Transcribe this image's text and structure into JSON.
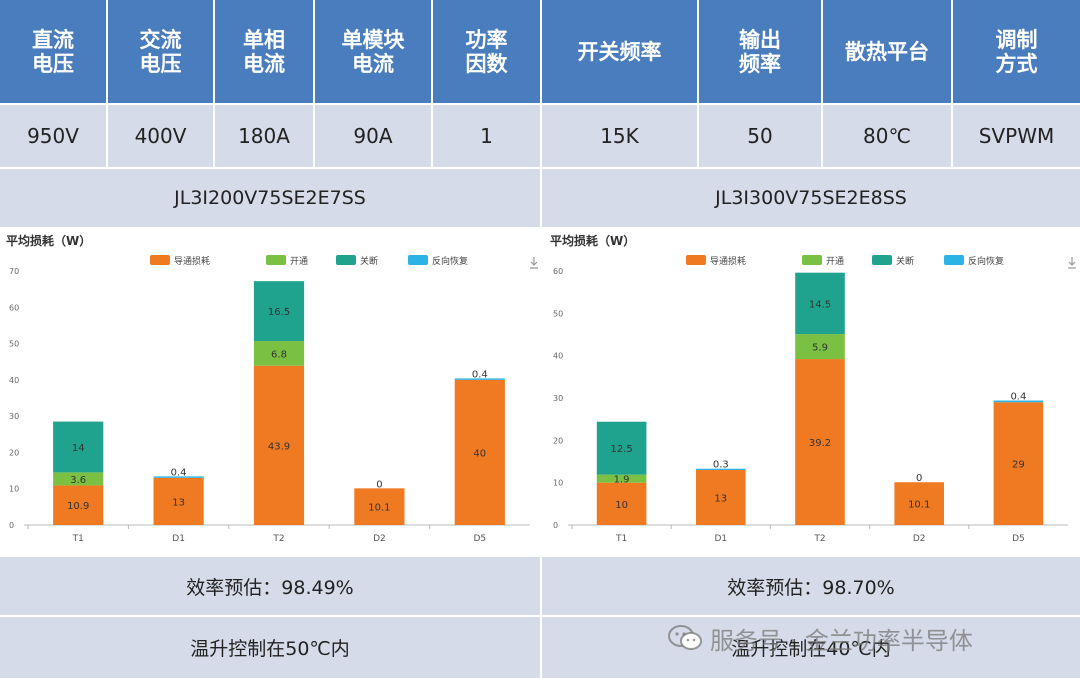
{
  "header": {
    "columns": [
      "直流\n电压",
      "交流\n电压",
      "单相\n电流",
      "单模块\n电流",
      "功率\n因数",
      "开关频率",
      "输出\n频率",
      "散热平台",
      "调制\n方式"
    ]
  },
  "values": [
    "950V",
    "400V",
    "180A",
    "90A",
    "1",
    "15K",
    "50",
    "80℃",
    "SVPWM"
  ],
  "models": [
    "JL3I200V75SE2E7SS",
    "JL3I300V75SE2E8SS"
  ],
  "efficiency": [
    "效率预估：98.49%",
    "效率预估：98.70%"
  ],
  "temperature": [
    "温升控制在50℃内",
    "温升控制在40℃内"
  ],
  "watermark": "服务号 · 金兰功率半导体",
  "chart_data": [
    {
      "type": "bar",
      "stacked": true,
      "title": "平均损耗（W）",
      "categories": [
        "T1",
        "D1",
        "T2",
        "D2",
        "D5"
      ],
      "ylim": [
        0,
        70
      ],
      "yticks": [
        0,
        10,
        20,
        30,
        40,
        50,
        60,
        70
      ],
      "legend_position": "top",
      "series": [
        {
          "name": "导通损耗",
          "color": "#f07a22",
          "values": [
            10.9,
            13,
            43.9,
            10.1,
            40
          ]
        },
        {
          "name": "开通",
          "color": "#7ac143",
          "values": [
            3.6,
            0,
            6.8,
            0,
            0
          ]
        },
        {
          "name": "关断",
          "color": "#1fa38e",
          "values": [
            14,
            0,
            16.5,
            0,
            0
          ]
        },
        {
          "name": "反向恢复",
          "color": "#2bb3e6",
          "values": [
            0,
            0.4,
            0,
            0,
            0.4
          ]
        }
      ],
      "data_labels": [
        {
          "category": "T1",
          "series": "导通损耗",
          "text": "10.9"
        },
        {
          "category": "T1",
          "series": "开通",
          "text": "3.6"
        },
        {
          "category": "T1",
          "series": "关断",
          "text": "14"
        },
        {
          "category": "D1",
          "series": "导通损耗",
          "text": "13"
        },
        {
          "category": "D1",
          "series": "反向恢复",
          "text": "0.4"
        },
        {
          "category": "T2",
          "series": "导通损耗",
          "text": "43.9"
        },
        {
          "category": "T2",
          "series": "开通",
          "text": "6.8"
        },
        {
          "category": "T2",
          "series": "关断",
          "text": "16.5"
        },
        {
          "category": "D2",
          "series": "导通损耗",
          "text": "10.1"
        },
        {
          "category": "D2",
          "series": "反向恢复",
          "text": "0"
        },
        {
          "category": "D5",
          "series": "导通损耗",
          "text": "40"
        },
        {
          "category": "D5",
          "series": "反向恢复",
          "text": "0.4"
        }
      ]
    },
    {
      "type": "bar",
      "stacked": true,
      "title": "平均损耗（W）",
      "categories": [
        "T1",
        "D1",
        "T2",
        "D2",
        "D5"
      ],
      "ylim": [
        0,
        60
      ],
      "yticks": [
        0,
        10,
        20,
        30,
        40,
        50,
        60
      ],
      "legend_position": "top",
      "series": [
        {
          "name": "导通损耗",
          "color": "#f07a22",
          "values": [
            10,
            13,
            39.2,
            10.1,
            29
          ]
        },
        {
          "name": "开通",
          "color": "#7ac143",
          "values": [
            1.9,
            0,
            5.9,
            0,
            0
          ]
        },
        {
          "name": "关断",
          "color": "#1fa38e",
          "values": [
            12.5,
            0,
            14.5,
            0,
            0
          ]
        },
        {
          "name": "反向恢复",
          "color": "#2bb3e6",
          "values": [
            0,
            0.3,
            0,
            0,
            0.4
          ]
        }
      ],
      "data_labels": [
        {
          "category": "T1",
          "series": "导通损耗",
          "text": "10"
        },
        {
          "category": "T1",
          "series": "开通",
          "text": "1.9"
        },
        {
          "category": "T1",
          "series": "关断",
          "text": "12.5"
        },
        {
          "category": "D1",
          "series": "导通损耗",
          "text": "13"
        },
        {
          "category": "D1",
          "series": "反向恢复",
          "text": "0.3"
        },
        {
          "category": "T2",
          "series": "导通损耗",
          "text": "39.2"
        },
        {
          "category": "T2",
          "series": "开通",
          "text": "5.9"
        },
        {
          "category": "T2",
          "series": "关断",
          "text": "14.5"
        },
        {
          "category": "D2",
          "series": "导通损耗",
          "text": "10.1"
        },
        {
          "category": "D2",
          "series": "反向恢复",
          "text": "0"
        },
        {
          "category": "D5",
          "series": "导通损耗",
          "text": "29"
        },
        {
          "category": "D5",
          "series": "反向恢复",
          "text": "0.4"
        }
      ]
    }
  ]
}
